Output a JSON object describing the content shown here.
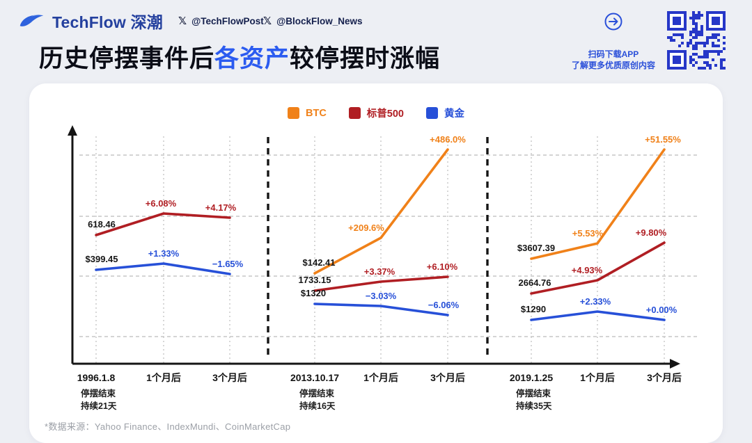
{
  "header": {
    "brand_name": "TechFlow",
    "brand_suffix": "深潮",
    "handles": [
      "@TechFlowPost",
      "@BlockFlow_News"
    ],
    "qr_caption": [
      "扫码下载APP",
      "了解更多优质原创内容"
    ]
  },
  "title": {
    "prefix": "历史停摆事件后",
    "highlight": "各资产",
    "suffix": "较停摆时涨幅"
  },
  "legend": [
    {
      "label": "BTC",
      "color": "#F08119"
    },
    {
      "label": "标普500",
      "color": "#B01E23"
    },
    {
      "label": "黄金",
      "color": "#2750D8"
    }
  ],
  "footer_source": "*数据来源：Yahoo Finance、IndexMundi、CoinMarketCap",
  "chart_data": {
    "type": "line",
    "title": "历史停摆事件后各资产较停摆时涨幅",
    "grid": "dashed",
    "legend_position": "top-center",
    "x_categories_per_panel": [
      "停摆结束日",
      "1个月后",
      "3个月后"
    ],
    "panels": [
      {
        "event_date": "1996.1.8",
        "notes": [
          "停摆结束",
          "持续21天"
        ],
        "x_labels": [
          "1996.1.8",
          "1个月后",
          "3个月后"
        ],
        "series": [
          {
            "name": "标普500",
            "start_value": 618.46,
            "changes_pct": [
              0,
              6.08,
              4.17
            ],
            "labels": [
              "618.46",
              "+6.08%",
              "+4.17%"
            ]
          },
          {
            "name": "黄金",
            "start_value": 399.45,
            "changes_pct": [
              0,
              1.33,
              -1.65
            ],
            "labels": [
              "$399.45",
              "+1.33%",
              "−1.65%"
            ]
          }
        ]
      },
      {
        "event_date": "2013.10.17",
        "notes": [
          "停摆结束",
          "持续16天"
        ],
        "x_labels": [
          "2013.10.17",
          "1个月后",
          "3个月后"
        ],
        "series": [
          {
            "name": "BTC",
            "start_value": 142.41,
            "changes_pct": [
              0,
              209.6,
              486.0
            ],
            "labels": [
              "$142.41",
              "+209.6%",
              "+486.0%"
            ]
          },
          {
            "name": "标普500",
            "start_value": 1733.15,
            "changes_pct": [
              0,
              3.37,
              6.1
            ],
            "labels": [
              "1733.15",
              "+3.37%",
              "+6.10%"
            ]
          },
          {
            "name": "黄金",
            "start_value": 1320,
            "changes_pct": [
              0,
              -3.03,
              -6.06
            ],
            "labels": [
              "$1320",
              "−3.03%",
              "−6.06%"
            ]
          }
        ]
      },
      {
        "event_date": "2019.1.25",
        "notes": [
          "停摆结束",
          "持续35天"
        ],
        "x_labels": [
          "2019.1.25",
          "1个月后",
          "3个月后"
        ],
        "series": [
          {
            "name": "BTC",
            "start_value": 3607.39,
            "changes_pct": [
              0,
              5.53,
              51.55
            ],
            "labels": [
              "$3607.39",
              "+5.53%",
              "+51.55%"
            ]
          },
          {
            "name": "标普500",
            "start_value": 2664.76,
            "changes_pct": [
              0,
              4.93,
              9.8
            ],
            "labels": [
              "2664.76",
              "+4.93%",
              "+9.80%"
            ]
          },
          {
            "name": "黄金",
            "start_value": 1290,
            "changes_pct": [
              0,
              2.33,
              0.0
            ],
            "labels": [
              "$1290",
              "+2.33%",
              "+0.00%"
            ]
          }
        ]
      }
    ]
  }
}
